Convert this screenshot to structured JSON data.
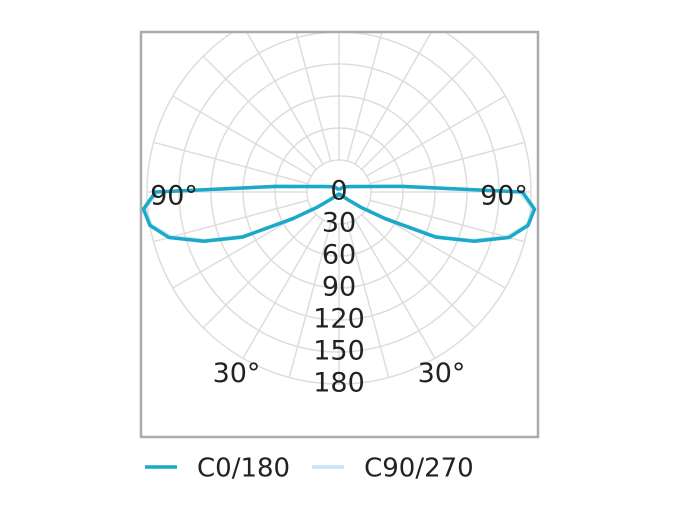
{
  "chart_data": {
    "type": "polar",
    "x": [
      0,
      10,
      20,
      30,
      40,
      50,
      55,
      60,
      65,
      70,
      75,
      80,
      85,
      90,
      95,
      100,
      110,
      120,
      140,
      160,
      180
    ],
    "series": [
      {
        "name": "C90/270",
        "color": "#c4e7f3",
        "values": [
          2,
          2,
          3,
          3,
          5,
          12,
          24,
          48,
          98,
          133,
          163,
          179,
          183,
          170,
          58,
          29,
          15,
          10,
          6,
          3,
          2
        ]
      },
      {
        "name": "C0/180",
        "color": "#1ba8c9",
        "values": [
          2,
          2,
          3,
          3,
          5,
          12,
          25,
          50,
          100,
          135,
          165,
          180,
          184,
          172,
          60,
          30,
          15,
          10,
          6,
          3,
          2
        ]
      }
    ],
    "rlim": [
      0,
      180
    ],
    "rticks": [
      0,
      30,
      60,
      90,
      120,
      150,
      180
    ],
    "angleticks": [
      {
        "value": -90,
        "label": "90°"
      },
      {
        "value": 90,
        "label": "90°"
      },
      {
        "value": -30,
        "label": "30°"
      },
      {
        "value": 30,
        "label": "30°"
      }
    ],
    "grid": true
  }
}
